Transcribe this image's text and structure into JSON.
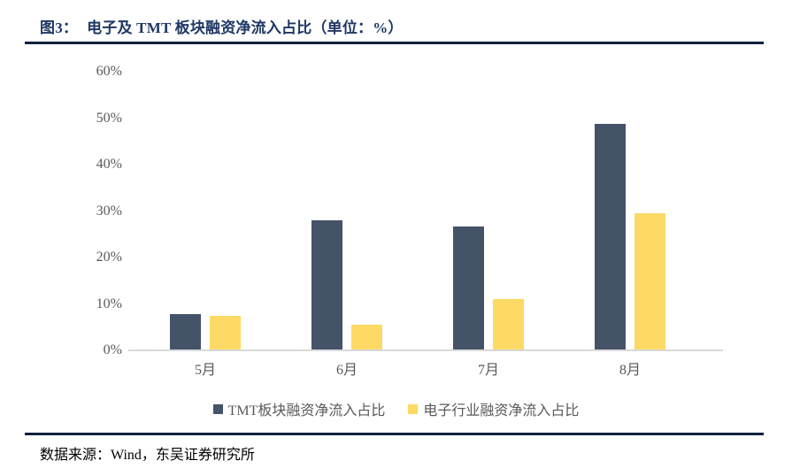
{
  "header": {
    "figure_no": "图3：",
    "title": "电子及 TMT 板块融资净流入占比（单位：%）"
  },
  "footer": {
    "source": "数据来源：Wind，东吴证券研究所"
  },
  "colors": {
    "title_navy": "#1F3864",
    "rule_dark": "#10203E",
    "axis_line": "#D9D9D9",
    "tick_text": "#595959",
    "tmt_bar": "#455369",
    "electronics_bar": "#FDD965"
  },
  "chart_data": {
    "type": "bar",
    "title": "电子及 TMT 板块融资净流入占比",
    "unit": "%",
    "categories": [
      "5月",
      "6月",
      "7月",
      "8月"
    ],
    "series": [
      {
        "key": "tmt",
        "name": "TMT板块融资净流入占比",
        "color": "#455369",
        "values": [
          7.6,
          27.9,
          26.4,
          48.5
        ]
      },
      {
        "key": "electronics",
        "name": "电子行业融资净流入占比",
        "color": "#FDD965",
        "values": [
          7.3,
          5.4,
          10.9,
          29.3
        ]
      }
    ],
    "xlabel": "",
    "ylabel": "",
    "ylim": [
      0,
      60
    ],
    "yticks": [
      "60%",
      "50%",
      "40%",
      "30%",
      "20%",
      "10%",
      "0%"
    ],
    "grid": false,
    "legend_position": "bottom"
  }
}
